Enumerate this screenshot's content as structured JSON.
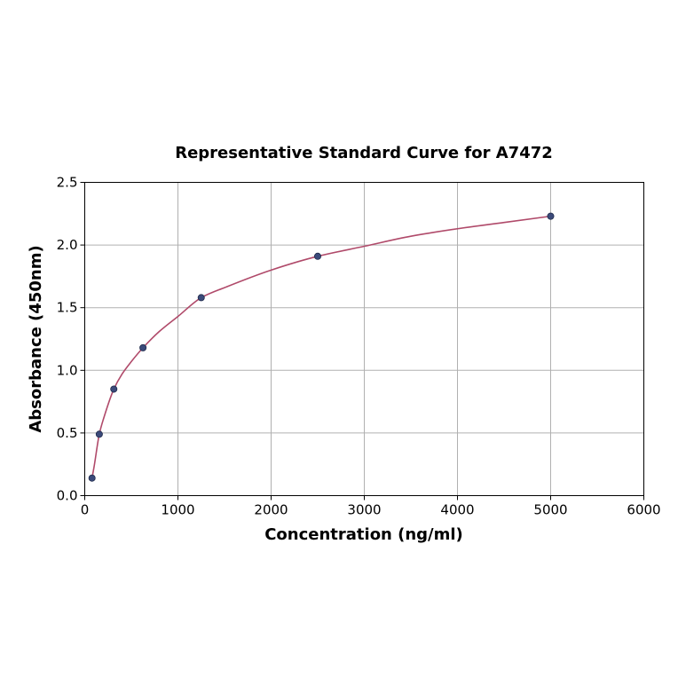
{
  "chart_data": {
    "type": "scatter",
    "title": "Representative Standard Curve for A7472",
    "xlabel": "Concentration (ng/ml)",
    "ylabel": "Absorbance (450nm)",
    "xlim": [
      0,
      6000
    ],
    "ylim": [
      0,
      2.5
    ],
    "x_ticks": [
      0,
      1000,
      2000,
      3000,
      4000,
      5000,
      6000
    ],
    "y_ticks": [
      0.0,
      0.5,
      1.0,
      1.5,
      2.0,
      2.5
    ],
    "x_tick_labels": [
      "0",
      "1000",
      "2000",
      "3000",
      "4000",
      "5000",
      "6000"
    ],
    "y_tick_labels": [
      "0.0",
      "0.5",
      "1.0",
      "1.5",
      "2.0",
      "2.5"
    ],
    "grid": true,
    "series": [
      {
        "kind": "points",
        "x": [
          78,
          156,
          312,
          625,
          1250,
          2500,
          5000
        ],
        "y": [
          0.14,
          0.49,
          0.85,
          1.18,
          1.58,
          1.91,
          2.23
        ],
        "color": "#3b4a7a"
      },
      {
        "kind": "fit-curve",
        "x": [
          78,
          100,
          156,
          200,
          312,
          400,
          500,
          625,
          800,
          1000,
          1250,
          1500,
          2000,
          2500,
          3000,
          3500,
          4000,
          4500,
          5000
        ],
        "y": [
          0.14,
          0.23,
          0.49,
          0.61,
          0.85,
          0.97,
          1.07,
          1.18,
          1.31,
          1.43,
          1.58,
          1.66,
          1.8,
          1.91,
          1.99,
          2.07,
          2.13,
          2.18,
          2.23
        ],
        "color": "#b04a6a"
      }
    ]
  }
}
